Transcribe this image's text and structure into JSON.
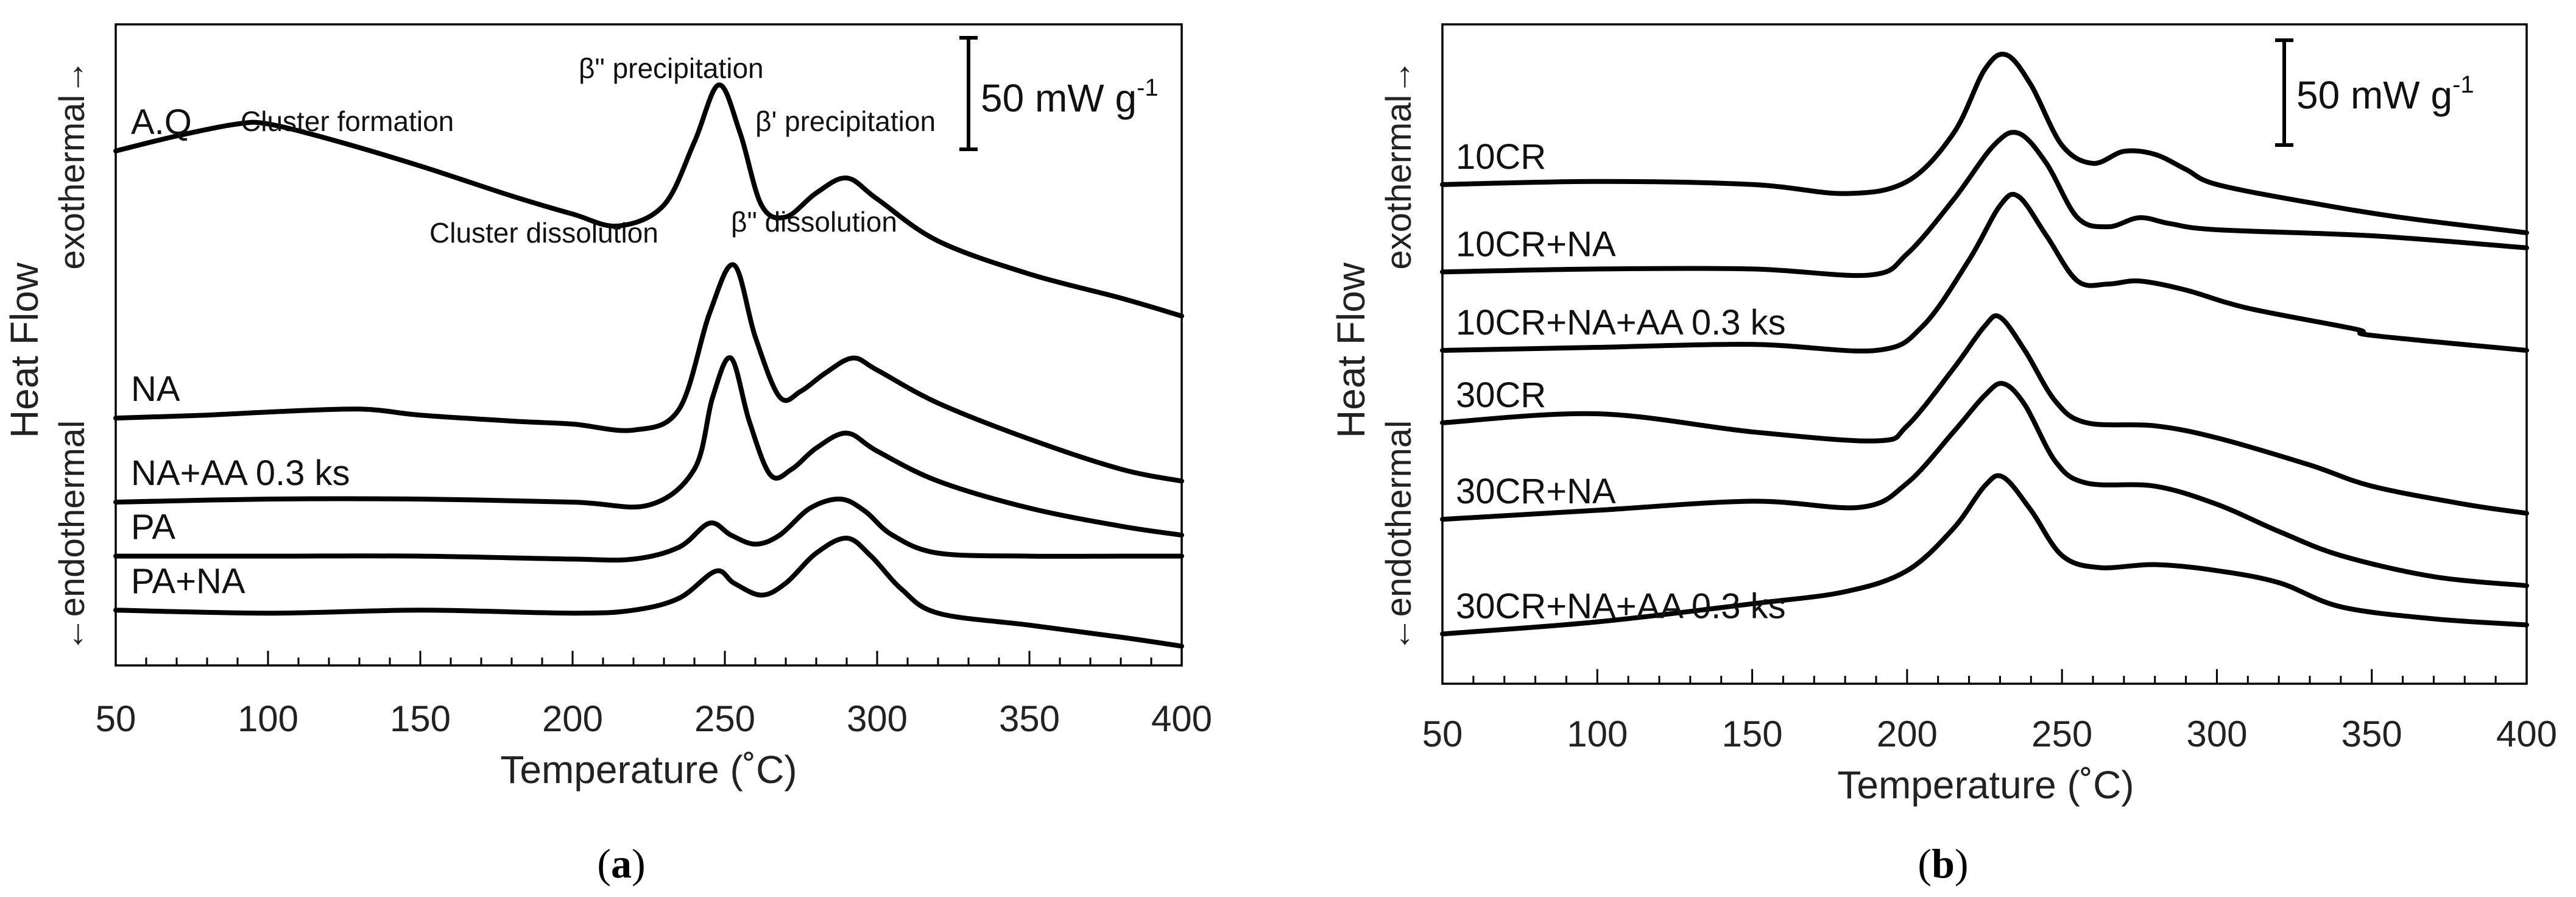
{
  "figure": {
    "captions": {
      "a_open": "(",
      "a_letter": "a",
      "a_close": ")",
      "b_open": "(",
      "b_letter": "b",
      "b_close": ")"
    }
  },
  "chart_data": [
    {
      "type": "line",
      "panel": "a",
      "xlabel": "Temperature (˚C)",
      "ylabel": "Heat Flow",
      "ylabel_exo": "exothermal→",
      "ylabel_endo": "←endothermal",
      "xlim": [
        50,
        400
      ],
      "xticks": [
        50,
        100,
        150,
        200,
        250,
        300,
        350,
        400
      ],
      "ylim": [
        0,
        100
      ],
      "y_units": "arbitrary offset (stacked curves, no y ticks)",
      "scale_bar": {
        "label": "50 mW g-1",
        "main": "50 mW g",
        "sup": "-1",
        "value": 50
      },
      "annotations": {
        "cluster_formation": "Cluster formation",
        "beta2_precipitation": "β\" precipitation",
        "beta1_precipitation": "β' precipitation",
        "cluster_dissolution": "Cluster dissolution",
        "beta2_dissolution": "β\" dissolution"
      },
      "series": [
        {
          "name": "A.Q.",
          "x": [
            50,
            70,
            90,
            100,
            120,
            150,
            180,
            200,
            215,
            230,
            240,
            248,
            255,
            262,
            270,
            280,
            290,
            300,
            320,
            350,
            380,
            400
          ],
          "y": [
            85.0,
            87.5,
            89.5,
            89.5,
            87.0,
            82.5,
            77.5,
            74.5,
            72.5,
            76.0,
            86.5,
            96.0,
            88.0,
            76.0,
            74.0,
            78.0,
            80.5,
            77.0,
            70.0,
            64.5,
            60.5,
            57.5
          ]
        },
        {
          "name": "NA",
          "x": [
            50,
            80,
            100,
            130,
            150,
            180,
            200,
            220,
            235,
            245,
            253,
            260,
            268,
            275,
            283,
            292,
            300,
            320,
            350,
            380,
            400
          ],
          "y": [
            40.5,
            41.0,
            41.5,
            42.0,
            41.0,
            40.0,
            39.5,
            38.5,
            42.0,
            58.0,
            66.0,
            54.0,
            44.0,
            45.0,
            48.0,
            50.5,
            48.5,
            43.0,
            37.0,
            32.0,
            30.0
          ]
        },
        {
          "name": "NA+AA 0.3 ks",
          "x": [
            50,
            100,
            150,
            200,
            225,
            240,
            246,
            252,
            258,
            265,
            272,
            280,
            290,
            300,
            320,
            350,
            380,
            400
          ],
          "y": [
            26.5,
            27.0,
            27.0,
            26.5,
            26.0,
            32.0,
            44.0,
            50.5,
            40.0,
            31.0,
            32.0,
            35.5,
            38.0,
            35.0,
            30.0,
            25.5,
            22.5,
            21.0
          ]
        },
        {
          "name": "PA",
          "x": [
            50,
            100,
            150,
            200,
            220,
            235,
            245,
            252,
            260,
            268,
            278,
            288,
            296,
            305,
            320,
            350,
            380,
            400
          ],
          "y": [
            17.5,
            17.5,
            17.5,
            17.0,
            17.0,
            19.0,
            23.0,
            21.0,
            19.5,
            21.0,
            25.5,
            27.0,
            25.0,
            21.0,
            18.0,
            17.5,
            17.5,
            17.5
          ]
        },
        {
          "name": "PA+NA",
          "x": [
            50,
            100,
            150,
            200,
            220,
            235,
            247,
            253,
            262,
            270,
            280,
            290,
            298,
            308,
            320,
            350,
            380,
            400
          ],
          "y": [
            8.5,
            8.0,
            8.5,
            8.0,
            8.5,
            10.5,
            15.0,
            13.0,
            11.0,
            13.0,
            18.0,
            20.5,
            17.5,
            12.0,
            8.0,
            6.0,
            4.0,
            2.5
          ]
        }
      ]
    },
    {
      "type": "line",
      "panel": "b",
      "xlabel": "Temperature (˚C)",
      "ylabel": "Heat Flow",
      "ylabel_exo": "exothermal→",
      "ylabel_endo": "←endothermal",
      "xlim": [
        50,
        400
      ],
      "xticks": [
        50,
        100,
        150,
        200,
        250,
        300,
        350,
        400
      ],
      "ylim": [
        0,
        100
      ],
      "y_units": "arbitrary offset (stacked curves, no y ticks)",
      "scale_bar": {
        "label": "50 mW g-1",
        "main": "50 mW g",
        "sup": "-1",
        "value": 50
      },
      "series": [
        {
          "name": "10CR",
          "x": [
            50,
            100,
            150,
            180,
            200,
            215,
            225,
            232,
            240,
            250,
            260,
            270,
            280,
            290,
            300,
            330,
            360,
            400
          ],
          "y": [
            77.5,
            78.0,
            77.5,
            76.0,
            78.0,
            86.0,
            96.5,
            99.0,
            94.0,
            84.0,
            81.0,
            83.0,
            82.5,
            80.0,
            77.5,
            74.5,
            72.0,
            69.5
          ]
        },
        {
          "name": "10CR+NA",
          "x": [
            50,
            100,
            150,
            188,
            200,
            215,
            228,
            236,
            245,
            255,
            265,
            275,
            285,
            300,
            350,
            400
          ],
          "y": [
            63.0,
            63.5,
            63.5,
            62.5,
            66.0,
            75.0,
            84.0,
            86.0,
            81.0,
            72.0,
            70.5,
            72.0,
            71.0,
            70.0,
            69.0,
            67.0
          ]
        },
        {
          "name": "10CR+NA+AA 0.3 ks",
          "x": [
            50,
            100,
            150,
            190,
            205,
            220,
            230,
            236,
            245,
            255,
            265,
            275,
            290,
            310,
            345,
            350,
            400
          ],
          "y": [
            50.0,
            50.5,
            51.0,
            50.0,
            54.0,
            65.0,
            74.0,
            75.5,
            69.0,
            61.5,
            61.0,
            61.5,
            60.0,
            57.0,
            53.5,
            52.5,
            50.0
          ]
        },
        {
          "name": "30CR",
          "x": [
            50,
            100,
            150,
            190,
            200,
            215,
            225,
            230,
            238,
            248,
            258,
            280,
            300,
            330,
            350,
            380,
            400
          ],
          "y": [
            38.0,
            39.5,
            36.5,
            35.0,
            37.5,
            47.0,
            54.0,
            55.5,
            50.0,
            41.5,
            38.0,
            37.5,
            35.5,
            31.0,
            27.5,
            24.5,
            23.0
          ]
        },
        {
          "name": "30CR+NA",
          "x": [
            50,
            100,
            150,
            185,
            200,
            215,
            225,
            231,
            238,
            248,
            258,
            280,
            300,
            320,
            340,
            370,
            400
          ],
          "y": [
            22.0,
            23.5,
            25.0,
            24.0,
            28.0,
            36.5,
            42.5,
            44.5,
            41.0,
            31.5,
            28.0,
            27.5,
            24.5,
            20.0,
            16.0,
            12.5,
            11.0
          ]
        },
        {
          "name": "30CR+NA+AA 0.3 ks",
          "x": [
            50,
            100,
            150,
            180,
            200,
            215,
            225,
            231,
            240,
            250,
            262,
            280,
            300,
            320,
            340,
            370,
            400
          ],
          "y": [
            3.0,
            5.0,
            8.0,
            10.0,
            13.5,
            20.5,
            27.5,
            29.0,
            23.5,
            16.0,
            14.0,
            14.5,
            13.5,
            11.5,
            7.5,
            5.5,
            4.5
          ]
        }
      ]
    }
  ]
}
